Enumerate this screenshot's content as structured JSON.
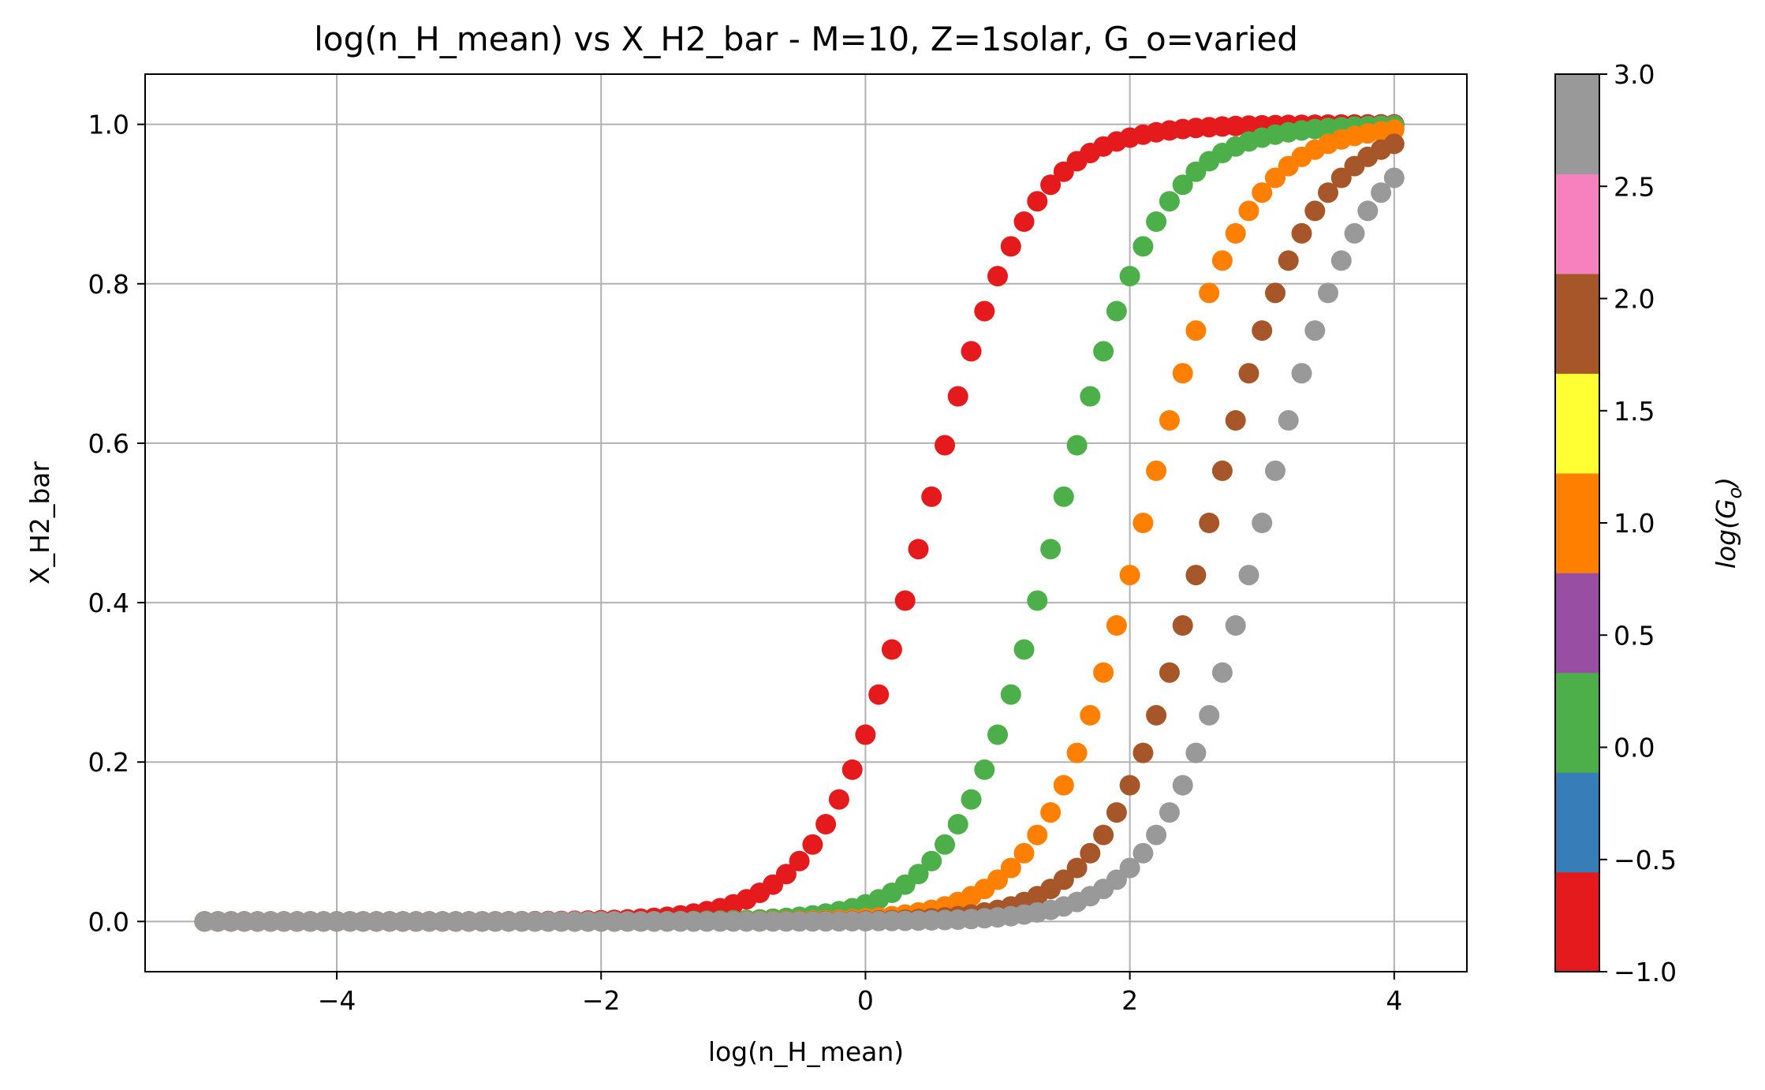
{
  "chart_data": {
    "type": "scatter",
    "title": "log(n_H_mean) vs X_H2_bar - M=10, Z=1solar, G_o=varied",
    "xlabel": "log(n_H_mean)",
    "ylabel": "X_H2_bar",
    "xlim": [
      -5.45,
      4.55
    ],
    "ylim": [
      -0.063,
      1.063
    ],
    "xticks": [
      -4,
      -2,
      0,
      2,
      4
    ],
    "xtick_labels": [
      "−4",
      "−2",
      "0",
      "2",
      "4"
    ],
    "yticks": [
      0.0,
      0.2,
      0.4,
      0.6,
      0.8,
      1.0
    ],
    "ytick_labels": [
      "0.0",
      "0.2",
      "0.4",
      "0.6",
      "0.8",
      "1.0"
    ],
    "grid": true,
    "x_range": [
      -5,
      4
    ],
    "points_per_series": 91,
    "series": [
      {
        "log_G_o": -1,
        "color": "#e41a1c",
        "x_at_half": 0.45,
        "sigmoid_scale": 0.38
      },
      {
        "log_G_o": 0,
        "color": "#4daf4a",
        "x_at_half": 1.45,
        "sigmoid_scale": 0.38
      },
      {
        "log_G_o": 1,
        "color": "#ff7f00",
        "x_at_half": 2.1,
        "sigmoid_scale": 0.38
      },
      {
        "log_G_o": 2,
        "color": "#a65628",
        "x_at_half": 2.6,
        "sigmoid_scale": 0.38
      },
      {
        "log_G_o": 3,
        "color": "#999999",
        "x_at_half": 3.0,
        "sigmoid_scale": 0.38
      }
    ],
    "colorbar": {
      "label": "log(G_o)",
      "range": [
        -1.0,
        3.0
      ],
      "ticks": [
        -1.0,
        -0.5,
        0.0,
        0.5,
        1.0,
        1.5,
        2.0,
        2.5,
        3.0
      ],
      "tick_labels": [
        "−1.0",
        "−0.5",
        "0.0",
        "0.5",
        "1.0",
        "1.5",
        "2.0",
        "2.5",
        "3.0"
      ],
      "colors": [
        "#e41a1c",
        "#377eb8",
        "#4daf4a",
        "#984ea3",
        "#ff7f00",
        "#ffff33",
        "#a65628",
        "#f781bf",
        "#999999"
      ]
    }
  }
}
